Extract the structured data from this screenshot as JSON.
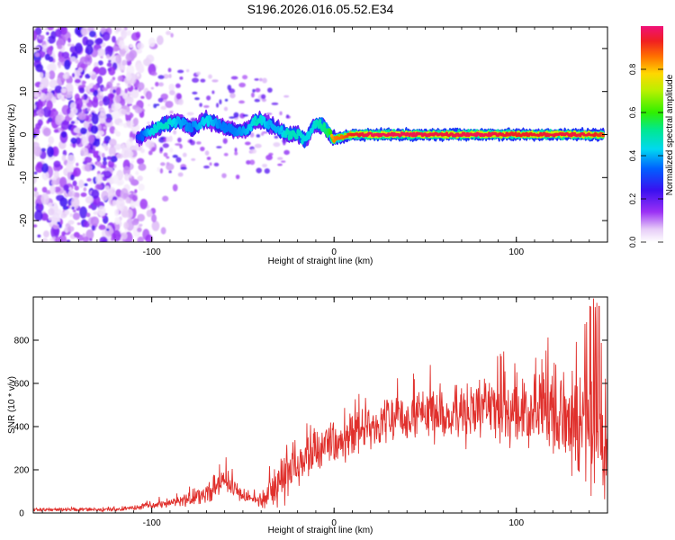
{
  "title": "S196.2026.016.05.52.E34",
  "chart_data": [
    {
      "type": "heatmap",
      "name": "spectrogram",
      "xlabel": "Height of straight line (km)",
      "ylabel": "Frequency (Hz)",
      "xlim": [
        -165,
        150
      ],
      "ylim": [
        -25,
        25
      ],
      "xticks": [
        -100,
        0,
        100
      ],
      "yticks": [
        -20,
        -10,
        0,
        10,
        20
      ],
      "colorbar": {
        "label": "Normalized spectral amplitude",
        "range": [
          0,
          1
        ],
        "ticks": [
          "0.0",
          "0.2",
          "0.4",
          "0.6",
          "0.8"
        ]
      },
      "ridge": {
        "x": [
          -108,
          -100,
          -92,
          -85,
          -78,
          -70,
          -62,
          -55,
          -48,
          -42,
          -36,
          -30,
          -25,
          -20,
          -16,
          -12,
          -9,
          -6,
          -3,
          0,
          5,
          10,
          20,
          40,
          60,
          80,
          100,
          120,
          140,
          148
        ],
        "frequency": [
          -1,
          1,
          2.5,
          3,
          1.5,
          3.5,
          2,
          1,
          1,
          3.5,
          2.5,
          1,
          0,
          0,
          -1.5,
          1.5,
          2.5,
          2,
          0.5,
          -1,
          -0.5,
          0,
          0,
          0,
          0,
          0,
          0,
          0,
          0,
          0
        ],
        "amplitude": [
          0.35,
          0.55,
          0.6,
          0.5,
          0.45,
          0.55,
          0.45,
          0.45,
          0.5,
          0.6,
          0.5,
          0.5,
          0.6,
          0.6,
          0.55,
          0.55,
          0.6,
          0.65,
          0.7,
          0.8,
          0.82,
          0.88,
          0.92,
          0.92,
          0.9,
          0.92,
          0.88,
          0.9,
          0.9,
          0.85
        ]
      },
      "noise_region_x": [
        -165,
        -105
      ]
    },
    {
      "type": "line",
      "name": "snr",
      "xlabel": "Height of straight line (km)",
      "ylabel": "SNR (10 * v/v)",
      "xlim": [
        -165,
        150
      ],
      "ylim": [
        0,
        1000
      ],
      "xticks": [
        -100,
        0,
        100
      ],
      "yticks": [
        0,
        200,
        400,
        600,
        800
      ],
      "color": "#e0302c",
      "envelope": {
        "x": [
          -165,
          -120,
          -100,
          -90,
          -80,
          -70,
          -60,
          -50,
          -40,
          -32,
          -28,
          -25,
          -20,
          -10,
          0,
          10,
          20,
          30,
          40,
          50,
          60,
          70,
          80,
          90,
          100,
          110,
          120,
          130,
          140,
          145,
          150
        ],
        "mean": [
          15,
          15,
          35,
          50,
          65,
          90,
          150,
          85,
          50,
          120,
          180,
          190,
          230,
          280,
          320,
          360,
          400,
          430,
          450,
          460,
          460,
          470,
          480,
          470,
          480,
          470,
          450,
          420,
          380,
          360,
          250
        ],
        "amp": [
          10,
          10,
          20,
          30,
          40,
          60,
          90,
          40,
          30,
          130,
          180,
          140,
          120,
          120,
          110,
          120,
          130,
          140,
          150,
          160,
          170,
          180,
          180,
          190,
          200,
          220,
          260,
          300,
          350,
          420,
          300
        ]
      }
    }
  ]
}
